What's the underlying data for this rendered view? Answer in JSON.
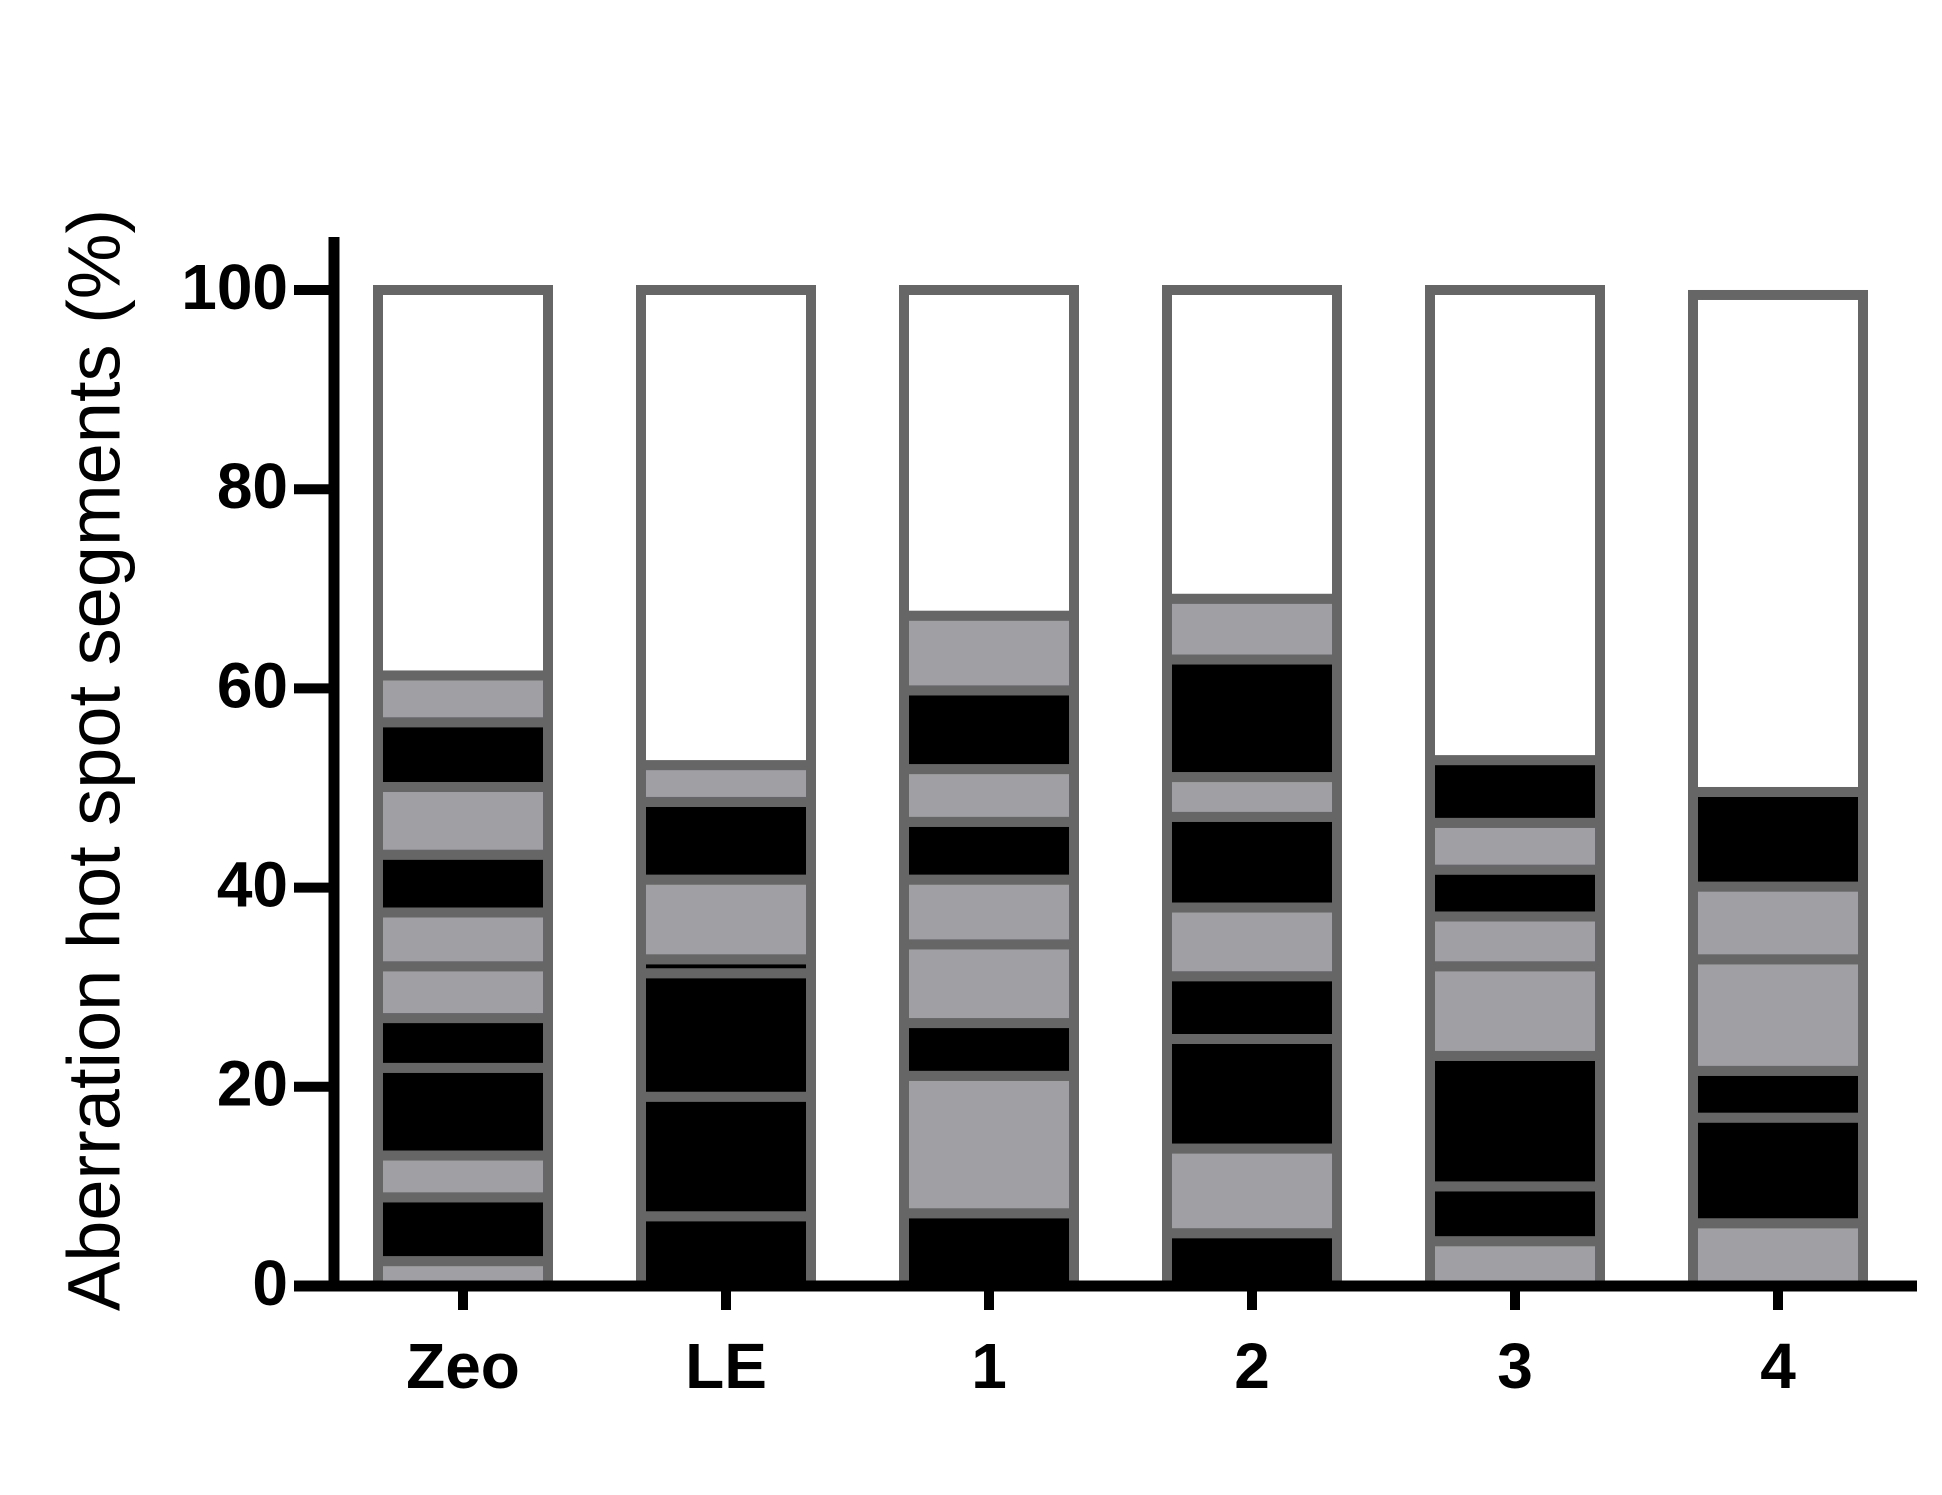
{
  "chart_data": {
    "type": "stacked_segments",
    "y_label": "Aberration hot spot segments (%)",
    "categories": [
      "Zeo",
      "LE",
      "1",
      "2",
      "3",
      "4"
    ],
    "ylim": [
      0,
      100
    ],
    "yticks": [
      0,
      20,
      40,
      60,
      80,
      100
    ],
    "stacks": [
      [
        {
          "value": 2.5,
          "color": "#a0a0a4"
        },
        {
          "value": 6.4,
          "color": "#000000"
        },
        {
          "value": 4.2,
          "color": "#a0a0a4"
        },
        {
          "value": 8.8,
          "color": "#000000"
        },
        {
          "value": 5,
          "color": "#000000"
        },
        {
          "value": 5.2,
          "color": "#a0a0a4"
        },
        {
          "value": 5.4,
          "color": "#a0a0a4"
        },
        {
          "value": 5.8,
          "color": "#000000"
        },
        {
          "value": 6.8,
          "color": "#a0a0a4"
        },
        {
          "value": 6.5,
          "color": "#000000"
        },
        {
          "value": 4.7,
          "color": "#a0a0a4"
        },
        {
          "value": 38.7,
          "color": "#ffffff"
        }
      ],
      [
        {
          "value": 7,
          "color": "#000000"
        },
        {
          "value": 12,
          "color": "#000000"
        },
        {
          "value": 12.4,
          "color": "#000000"
        },
        {
          "value": 1.4,
          "color": "#000000"
        },
        {
          "value": 8,
          "color": "#a0a0a4"
        },
        {
          "value": 7.8,
          "color": "#000000"
        },
        {
          "value": 3.7,
          "color": "#a0a0a4"
        },
        {
          "value": 47.7,
          "color": "#ffffff"
        }
      ],
      [
        {
          "value": 7.3,
          "color": "#000000"
        },
        {
          "value": 13.8,
          "color": "#a0a0a4"
        },
        {
          "value": 5.3,
          "color": "#000000"
        },
        {
          "value": 7.9,
          "color": "#a0a0a4"
        },
        {
          "value": 6.5,
          "color": "#a0a0a4"
        },
        {
          "value": 5.8,
          "color": "#000000"
        },
        {
          "value": 5.3,
          "color": "#a0a0a4"
        },
        {
          "value": 7.9,
          "color": "#000000"
        },
        {
          "value": 7.5,
          "color": "#a0a0a4"
        },
        {
          "value": 32.7,
          "color": "#ffffff"
        }
      ],
      [
        {
          "value": 5.3,
          "color": "#000000"
        },
        {
          "value": 8.5,
          "color": "#a0a0a4"
        },
        {
          "value": 11,
          "color": "#000000"
        },
        {
          "value": 6.3,
          "color": "#000000"
        },
        {
          "value": 6.9,
          "color": "#a0a0a4"
        },
        {
          "value": 9.1,
          "color": "#000000"
        },
        {
          "value": 4,
          "color": "#a0a0a4"
        },
        {
          "value": 11.8,
          "color": "#000000"
        },
        {
          "value": 6.1,
          "color": "#a0a0a4"
        },
        {
          "value": 31,
          "color": "#ffffff"
        }
      ],
      [
        {
          "value": 4.5,
          "color": "#a0a0a4"
        },
        {
          "value": 5.5,
          "color": "#000000"
        },
        {
          "value": 13.1,
          "color": "#000000"
        },
        {
          "value": 9,
          "color": "#a0a0a4"
        },
        {
          "value": 5,
          "color": "#a0a0a4"
        },
        {
          "value": 4.7,
          "color": "#000000"
        },
        {
          "value": 4.7,
          "color": "#a0a0a4"
        },
        {
          "value": 6.3,
          "color": "#000000"
        },
        {
          "value": 47.2,
          "color": "#ffffff"
        }
      ],
      [
        {
          "value": 6.3,
          "color": "#a0a0a4"
        },
        {
          "value": 10.6,
          "color": "#000000"
        },
        {
          "value": 4.7,
          "color": "#000000"
        },
        {
          "value": 11.2,
          "color": "#a0a0a4"
        },
        {
          "value": 7.3,
          "color": "#a0a0a4"
        },
        {
          "value": 9.5,
          "color": "#000000"
        },
        {
          "value": 49.9,
          "color": "#ffffff"
        }
      ]
    ]
  }
}
